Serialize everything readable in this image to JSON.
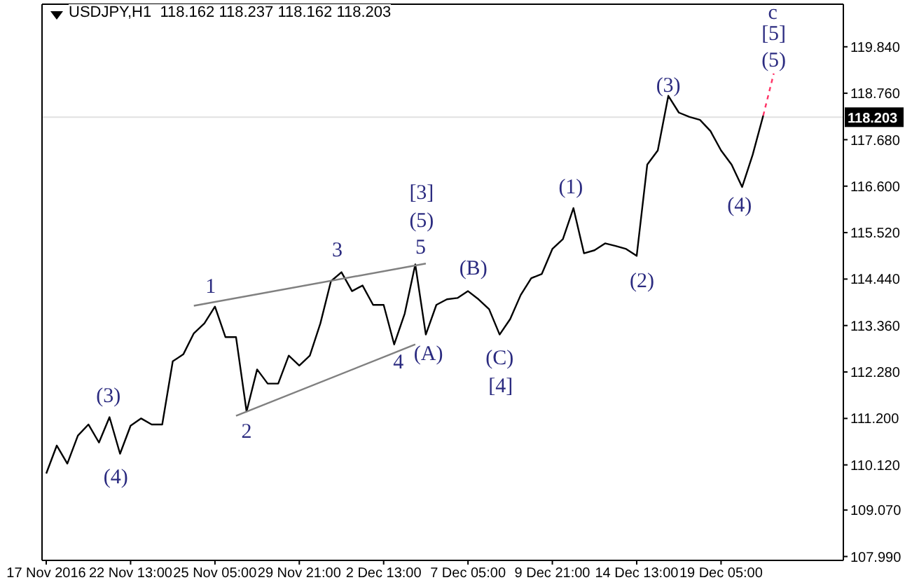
{
  "chart_data": {
    "type": "line",
    "title": "USDJPY,H1  118.162 118.237 118.162 118.203",
    "categories": [
      "17 Nov 2016",
      null,
      null,
      null,
      null,
      null,
      null,
      null,
      "22 Nov 13:00",
      null,
      null,
      null,
      null,
      null,
      null,
      null,
      "25 Nov 05:00",
      null,
      null,
      null,
      null,
      null,
      null,
      null,
      "29 Nov 21:00",
      null,
      null,
      null,
      null,
      null,
      null,
      null,
      "2 Dec 13:00",
      null,
      null,
      null,
      null,
      null,
      null,
      null,
      "7 Dec 05:00",
      null,
      null,
      null,
      null,
      null,
      null,
      null,
      "9 Dec 21:00",
      null,
      null,
      null,
      null,
      null,
      null,
      null,
      "14 Dec 13:00",
      null,
      null,
      null,
      null,
      null,
      null,
      null,
      "19 Dec 05:00",
      null,
      null,
      null,
      null,
      null,
      null,
      null,
      null,
      null,
      null,
      null
    ],
    "ylim": [
      107.9,
      120.83
    ],
    "yticks": [
      {
        "value": 107.99,
        "label": "107.990"
      },
      {
        "value": 109.07,
        "label": "109.070"
      },
      {
        "value": 110.12,
        "label": "110.120"
      },
      {
        "value": 111.2,
        "label": "111.200"
      },
      {
        "value": 112.28,
        "label": "112.280"
      },
      {
        "value": 113.36,
        "label": "113.360"
      },
      {
        "value": 114.44,
        "label": "114.440"
      },
      {
        "value": 115.52,
        "label": "115.520"
      },
      {
        "value": 116.6,
        "label": "116.600"
      },
      {
        "value": 117.68,
        "label": "117.680"
      },
      {
        "value": 118.76,
        "label": "118.760"
      },
      {
        "value": 119.84,
        "label": "119.840"
      }
    ],
    "series": [
      {
        "color": "#000000",
        "values": [
          109.92,
          110.57,
          110.15,
          110.8,
          111.06,
          110.64,
          111.23,
          110.38,
          111.03,
          111.2,
          111.06,
          111.06,
          112.53,
          112.69,
          113.18,
          113.41,
          113.8,
          113.09,
          113.09,
          111.36,
          112.34,
          112.01,
          112.01,
          112.66,
          112.43,
          112.66,
          113.41,
          114.39,
          114.6,
          114.16,
          114.29,
          113.84,
          113.84,
          112.92,
          113.64,
          114.78,
          113.15,
          113.84,
          113.97,
          114.0,
          114.16,
          113.97,
          113.74,
          113.15,
          113.51,
          114.07,
          114.46,
          114.56,
          115.14,
          115.37,
          116.09,
          115.04,
          115.11,
          115.27,
          115.21,
          115.14,
          114.98,
          117.1,
          117.43,
          118.7,
          118.31,
          118.21,
          118.14,
          117.88,
          117.43,
          117.1,
          116.58,
          117.33,
          118.24,
          null,
          null,
          null,
          null,
          null,
          null,
          null
        ]
      },
      {
        "color": "#ff3366",
        "line_style": "dashed",
        "values": [
          null,
          null,
          null,
          null,
          null,
          null,
          null,
          null,
          null,
          null,
          null,
          null,
          null,
          null,
          null,
          null,
          null,
          null,
          null,
          null,
          null,
          null,
          null,
          null,
          null,
          null,
          null,
          null,
          null,
          null,
          null,
          null,
          null,
          null,
          null,
          null,
          null,
          null,
          null,
          null,
          null,
          null,
          null,
          null,
          null,
          null,
          null,
          null,
          null,
          null,
          null,
          null,
          null,
          null,
          null,
          null,
          null,
          null,
          null,
          null,
          null,
          null,
          null,
          null,
          null,
          null,
          null,
          null,
          118.24,
          119.22,
          null,
          null,
          null,
          null,
          null,
          null
        ]
      },
      {
        "color": "#808080",
        "values": [
          null,
          null,
          null,
          null,
          null,
          null,
          null,
          null,
          null,
          null,
          null,
          null,
          null,
          null,
          113.82,
          null,
          null,
          null,
          null,
          null,
          null,
          null,
          null,
          null,
          null,
          null,
          null,
          null,
          null,
          null,
          null,
          null,
          null,
          null,
          null,
          null,
          114.8,
          null,
          null,
          null,
          null,
          null,
          null,
          null,
          null,
          null,
          null,
          null,
          null,
          null,
          null,
          null,
          null,
          null,
          null,
          null,
          null,
          null,
          null,
          null,
          null,
          null,
          null,
          null,
          null,
          null,
          null,
          null,
          null,
          null,
          null,
          null,
          null,
          null,
          null,
          null
        ]
      },
      {
        "color": "#808080",
        "values": [
          null,
          null,
          null,
          null,
          null,
          null,
          null,
          null,
          null,
          null,
          null,
          null,
          null,
          null,
          null,
          null,
          null,
          null,
          111.26,
          null,
          null,
          null,
          null,
          null,
          null,
          null,
          null,
          null,
          null,
          null,
          null,
          null,
          null,
          null,
          null,
          112.92,
          null,
          null,
          null,
          null,
          null,
          null,
          null,
          null,
          null,
          null,
          null,
          null,
          null,
          null,
          null,
          null,
          null,
          null,
          null,
          null,
          null,
          null,
          null,
          null,
          null,
          null,
          null,
          null,
          null,
          null,
          null,
          null,
          null,
          null,
          null,
          null,
          null,
          null,
          null,
          null
        ]
      }
    ],
    "ref_lines": [
      {
        "axis": "y",
        "value": 118.203,
        "label": "118.203"
      }
    ],
    "annotations": [
      "(3)",
      "(4)",
      "1",
      "2",
      "3",
      "4",
      "5",
      "(5)",
      "[3]",
      "(A)",
      "(B)",
      "(C)",
      "[4]",
      "(1)",
      "(2)",
      "(3)",
      "(4)",
      "(5)",
      "[5]",
      "c"
    ]
  }
}
